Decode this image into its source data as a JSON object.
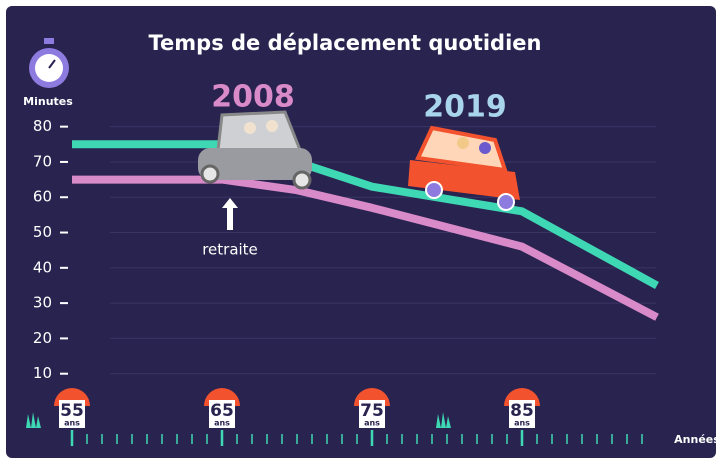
{
  "chart_data": {
    "type": "line",
    "title": "Temps de déplacement quotidien",
    "y_label": "Minutes",
    "x_label": "Années",
    "x_tick_suffix": "ans",
    "annotation": "retraite",
    "x": [
      55,
      65,
      70,
      75,
      85,
      94
    ],
    "series": [
      {
        "name": "2019",
        "color": "#3fd8b4",
        "values": [
          75,
          75,
          70,
          63,
          56,
          35
        ]
      },
      {
        "name": "2008",
        "color": "#d98ac9",
        "values": [
          65,
          65,
          62,
          57,
          46,
          26
        ]
      }
    ],
    "xlim": [
      52,
      97
    ],
    "ylim": [
      0,
      85
    ],
    "xticks": [
      55,
      65,
      75,
      85
    ],
    "xminorticks": [
      55,
      56,
      57,
      58,
      59,
      60,
      61,
      62,
      63,
      64,
      65,
      66,
      67,
      68,
      69,
      70,
      71,
      72,
      73,
      74,
      75,
      76,
      77,
      78,
      79,
      80,
      81,
      82,
      83,
      84,
      85,
      86,
      87,
      88,
      89,
      90,
      91,
      92,
      93
    ],
    "yticks": [
      10,
      20,
      30,
      40,
      50,
      60,
      70,
      80
    ],
    "grid": true
  }
}
